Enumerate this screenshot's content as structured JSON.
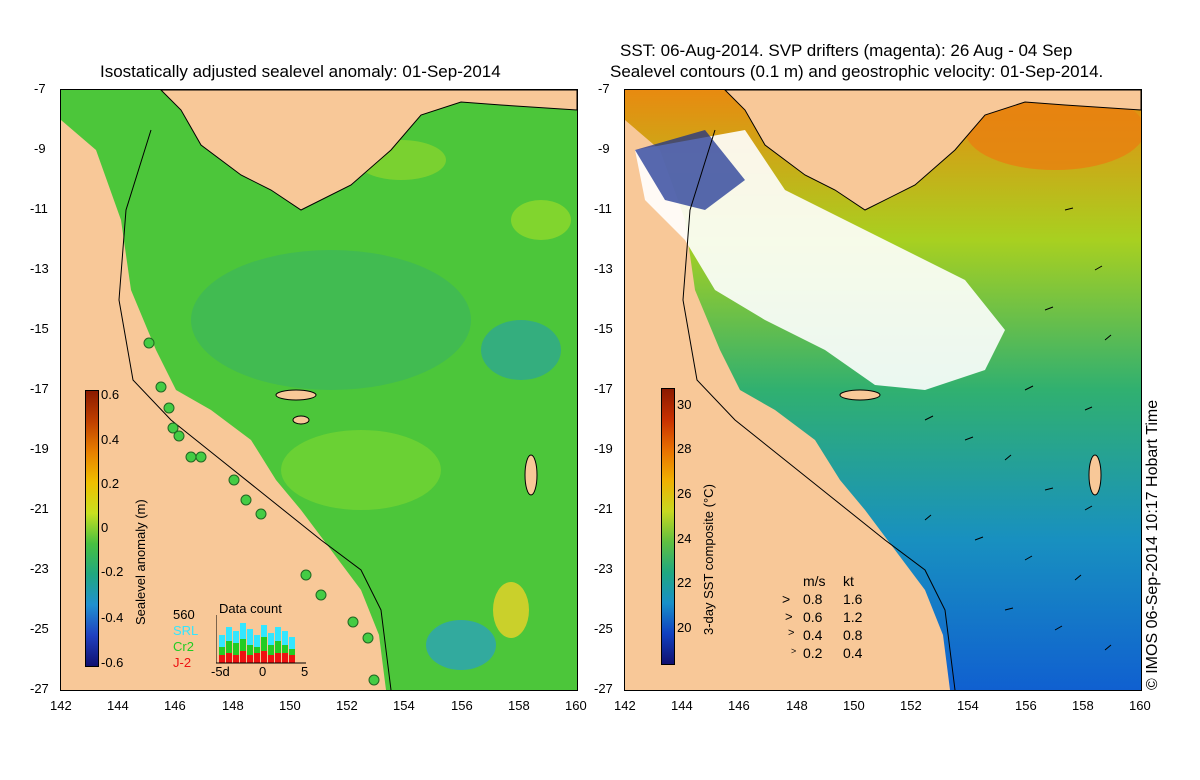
{
  "left_panel": {
    "title": "Isostatically adjusted sealevel anomaly: 01-Sep-2014",
    "colorbar": {
      "label": "Sealevel anomaly (m)",
      "ticks": [
        "0.6",
        "0.4",
        "0.2",
        "0",
        "-0.2",
        "-0.4",
        "-0.6"
      ]
    },
    "data_count": {
      "title": "Data count",
      "total": "560",
      "satellites": [
        {
          "name": "SRL",
          "color": "#33e6ff"
        },
        {
          "name": "Cr2",
          "color": "#22cc22"
        },
        {
          "name": "J-2",
          "color": "#ee1111"
        }
      ],
      "axis_labels": [
        "-5d",
        "0",
        "5"
      ]
    }
  },
  "right_panel": {
    "title_line1": "SST: 06-Aug-2014. SVP drifters (magenta): 26 Aug - 04 Sep",
    "title_line2": "Sealevel contours (0.1 m) and geostrophic velocity: 01-Sep-2014.",
    "colorbar": {
      "label": "3-day SST composite (°C)",
      "ticks": [
        "30",
        "28",
        "26",
        "24",
        "22",
        "20"
      ]
    },
    "velocity_legend": {
      "headers": [
        "m/s",
        "kt"
      ],
      "rows": [
        [
          "0.8",
          "1.6"
        ],
        [
          "0.6",
          "1.2"
        ],
        [
          "0.4",
          "0.8"
        ],
        [
          "0.2",
          "0.4"
        ]
      ]
    }
  },
  "axes": {
    "lat_ticks": [
      "-7",
      "-9",
      "-11",
      "-13",
      "-15",
      "-17",
      "-19",
      "-21",
      "-23",
      "-25",
      "-27"
    ],
    "lon_ticks": [
      "142",
      "144",
      "146",
      "148",
      "150",
      "152",
      "154",
      "156",
      "158",
      "160"
    ]
  },
  "credit": "© IMOS 06-Sep-2014 10:17 Hobart Time",
  "colors": {
    "land": "#f8c898",
    "ocean_anomaly": "#4cc63a",
    "ocean_sst": "#2aa87a"
  }
}
